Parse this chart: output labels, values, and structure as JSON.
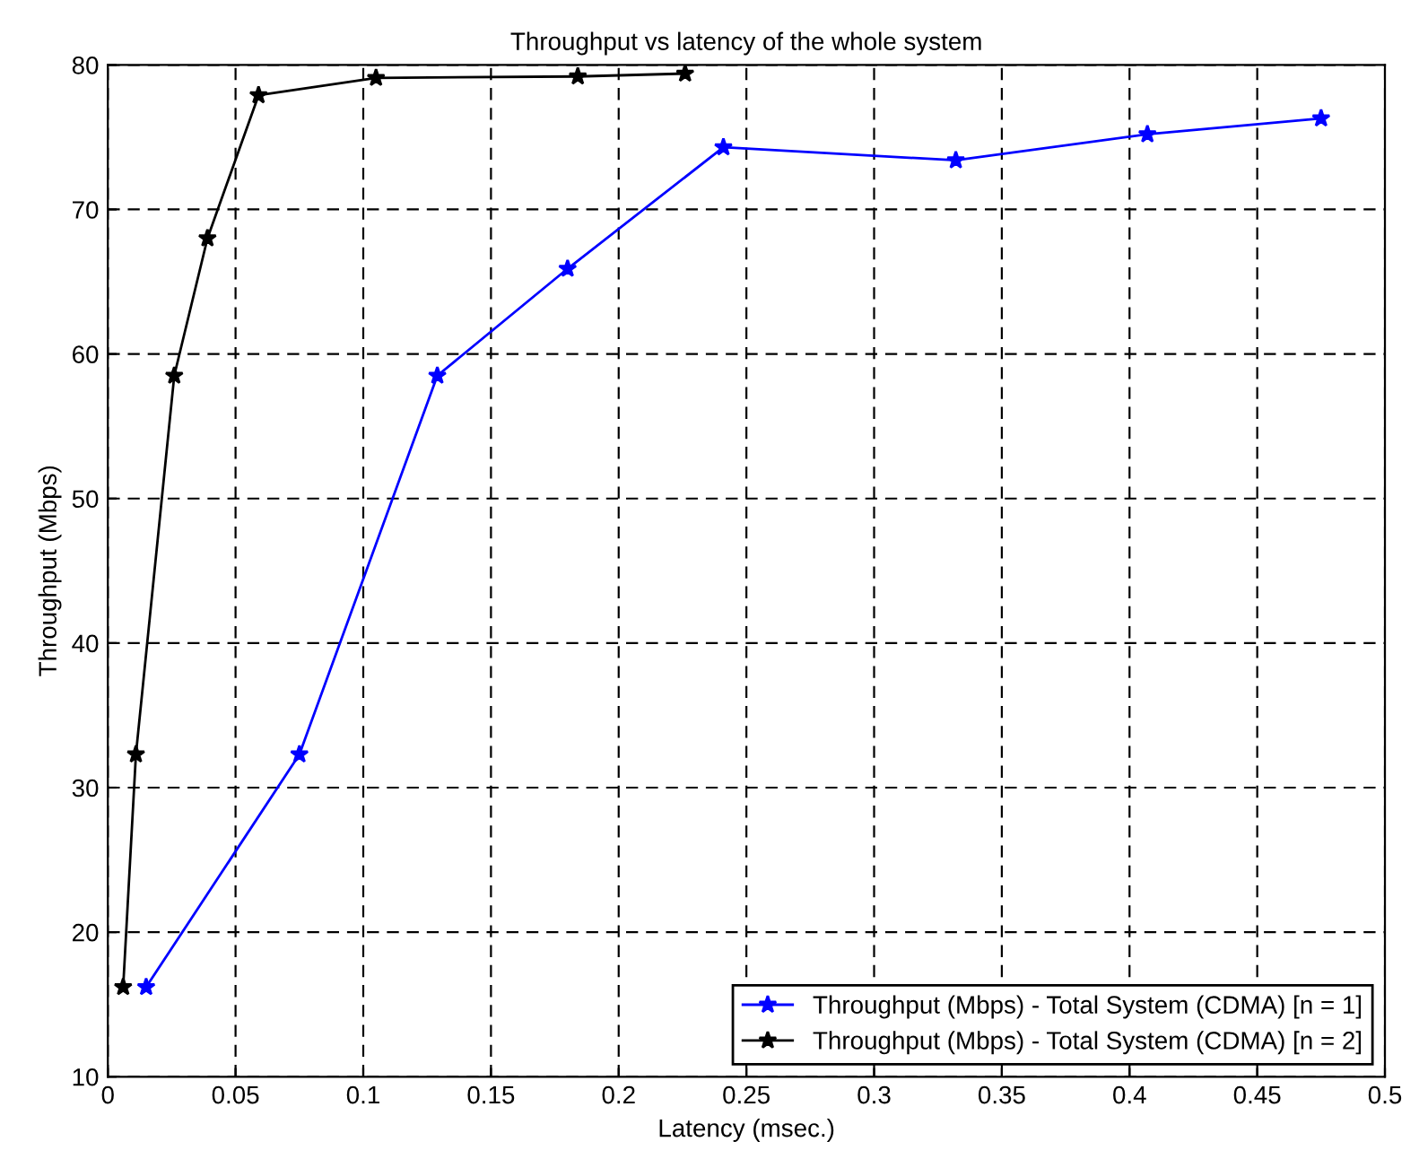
{
  "chart_data": {
    "type": "line",
    "title": "Throughput vs latency of the whole system",
    "xlabel": "Latency (msec.)",
    "ylabel": "Throughput (Mbps)",
    "series": [
      {
        "name": "Throughput (Mbps) - Total System (CDMA) [n = 1]",
        "color": "#0000ff",
        "x": [
          0.015,
          0.075,
          0.129,
          0.18,
          0.241,
          0.332,
          0.407,
          0.475
        ],
        "values": [
          16.2,
          32.3,
          58.5,
          65.9,
          74.3,
          73.4,
          75.2,
          76.3
        ]
      },
      {
        "name": "Throughput (Mbps) - Total System (CDMA) [n = 2]",
        "color": "#000000",
        "x": [
          0.006,
          0.011,
          0.026,
          0.039,
          0.059,
          0.105,
          0.184,
          0.226
        ],
        "values": [
          16.2,
          32.3,
          58.5,
          68.0,
          77.9,
          79.1,
          79.2,
          79.4
        ]
      }
    ],
    "xlim": [
      0,
      0.5
    ],
    "xticks": [
      0,
      0.05,
      0.1,
      0.15,
      0.2,
      0.25,
      0.3,
      0.35,
      0.4,
      0.45,
      0.5
    ],
    "ylim": [
      10,
      80
    ],
    "yticks": [
      10,
      20,
      30,
      40,
      50,
      60,
      70,
      80
    ],
    "grid": true,
    "legend": "bottom right",
    "marker": "star",
    "line_style": "solid"
  }
}
